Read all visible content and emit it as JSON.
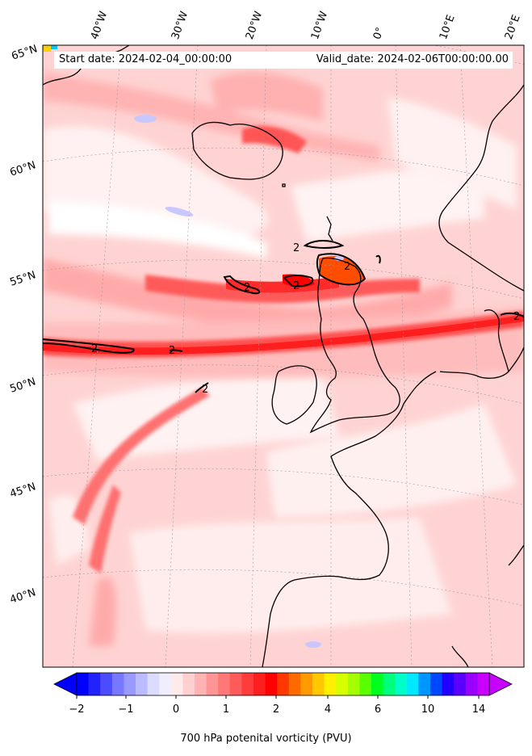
{
  "map": {
    "start_text": "Start date: 2024-02-04_00:00:00",
    "valid_text": "Valid_date: 2024-02-06T00:00:00.00",
    "lon_labels": [
      "40°W",
      "30°W",
      "20°W",
      "10°W",
      "0°",
      "10°E",
      "20°E"
    ],
    "lat_labels": [
      "65°N",
      "60°N",
      "55°N",
      "50°N",
      "45°N",
      "40°N"
    ],
    "contour_level_label": "2",
    "region": "North Atlantic and Europe",
    "colors": {
      "background_field": "#ffd0d0",
      "coastline": "#000000",
      "jet_core": "#ff1a1a",
      "max_core": "#ff4d00"
    }
  },
  "colorbar": {
    "tick_labels": [
      "−2",
      "−1",
      "0",
      "1",
      "2",
      "4",
      "6",
      "10",
      "14"
    ],
    "label": "700 hPa potenital vorticity (PVU)",
    "colors": [
      "#0000ff",
      "#2222ff",
      "#4c4cff",
      "#7777ff",
      "#9999ff",
      "#bbbbff",
      "#dcdcff",
      "#eeeeff",
      "#ffeaea",
      "#ffd0d0",
      "#ffb3b3",
      "#ff9595",
      "#ff7777",
      "#ff5a5a",
      "#ff3c3c",
      "#ff1e1e",
      "#ff0000",
      "#ff3800",
      "#ff6a00",
      "#ff9a00",
      "#ffc800",
      "#fff000",
      "#d8ff00",
      "#a6ff00",
      "#5aff00",
      "#00ff1e",
      "#00ff7a",
      "#00ffc8",
      "#00e8ff",
      "#0096ff",
      "#0048ff",
      "#2200ff",
      "#5a00ff",
      "#9a00ff",
      "#c800ff"
    ]
  }
}
